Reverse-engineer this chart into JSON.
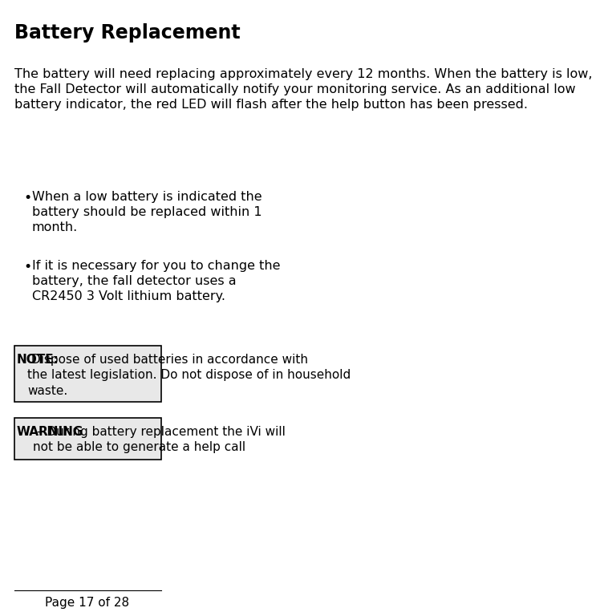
{
  "title": "Battery Replacement",
  "body_text": "The battery will need replacing approximately every 12 months. When the battery is low,\nthe Fall Detector will automatically notify your monitoring service. As an additional low\nbattery indicator, the red LED will flash after the help button has been pressed.",
  "bullets": [
    "When a low battery is indicated the\nbattery should be replaced within 1\nmonth.",
    "If it is necessary for you to change the\nbattery, the fall detector uses a\nCR2450 3 Volt lithium battery."
  ],
  "note_label": "NOTE:",
  "note_text": " Dispose of used batteries in accordance with\nthe latest legislation. Do not dispose of in household\nwaste.",
  "warning_label": "WARNING",
  "warning_text": " – During battery replacement the iVi will\nnot be able to generate a help call",
  "footer": "Page 17 of 28",
  "bg_color": "#ffffff",
  "text_color": "#000000",
  "note_bg": "#e8e8e8",
  "warning_bg": "#e8e8e8",
  "box_border_color": "#000000",
  "title_fontsize": 17,
  "body_fontsize": 11.5,
  "bullet_fontsize": 11.5,
  "note_fontsize": 11.0,
  "footer_fontsize": 11.0
}
